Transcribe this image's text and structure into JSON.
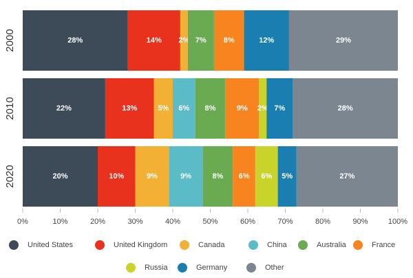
{
  "chart_data": {
    "type": "stacked-bar-horizontal",
    "categories": [
      "2000",
      "2010",
      "2020"
    ],
    "series": [
      {
        "name": "United States",
        "color": "#3d4a57",
        "values": [
          28,
          22,
          20
        ],
        "value_labels": [
          "28%",
          "22%",
          "20%"
        ]
      },
      {
        "name": "United Kingdom",
        "color": "#e8321e",
        "values": [
          14,
          13,
          10
        ],
        "value_labels": [
          "14%",
          "13%",
          "10%"
        ]
      },
      {
        "name": "Canada",
        "color": "#f2b134",
        "values": [
          2,
          5,
          9
        ],
        "value_labels": [
          "2%",
          "5%",
          "9%"
        ]
      },
      {
        "name": "China",
        "color": "#5bbcc8",
        "values": [
          0,
          6,
          9
        ],
        "value_labels": [
          null,
          "6%",
          "9%"
        ]
      },
      {
        "name": "Australia",
        "color": "#6aab52",
        "values": [
          7,
          8,
          8
        ],
        "value_labels": [
          "7%",
          "8%",
          "8%"
        ]
      },
      {
        "name": "France",
        "color": "#f7841e",
        "values": [
          8,
          9,
          6
        ],
        "value_labels": [
          "8%",
          "9%",
          "6%"
        ]
      },
      {
        "name": "Russia",
        "color": "#c8d42a",
        "values": [
          0,
          2,
          6
        ],
        "value_labels": [
          null,
          "2%",
          "6%"
        ]
      },
      {
        "name": "Germany",
        "color": "#1a7fb0",
        "values": [
          12,
          7,
          5
        ],
        "value_labels": [
          "12%",
          "7%",
          "5%"
        ]
      },
      {
        "name": "Other",
        "color": "#7b8691",
        "values": [
          29,
          28,
          27
        ],
        "value_labels": [
          "29%",
          "28%",
          "27%"
        ]
      }
    ],
    "xlim": [
      0,
      100
    ],
    "xticks": [
      {
        "value": 0,
        "label": "0%"
      },
      {
        "value": 10,
        "label": "10%"
      },
      {
        "value": 20,
        "label": "20%"
      },
      {
        "value": 30,
        "label": "30%"
      },
      {
        "value": 40,
        "label": "40%"
      },
      {
        "value": 50,
        "label": "50%"
      },
      {
        "value": 60,
        "label": "60%"
      },
      {
        "value": 70,
        "label": "70%"
      },
      {
        "value": 80,
        "label": "80%"
      },
      {
        "value": 90,
        "label": "90%"
      },
      {
        "value": 100,
        "label": "100%"
      }
    ],
    "legend": "bottom"
  }
}
